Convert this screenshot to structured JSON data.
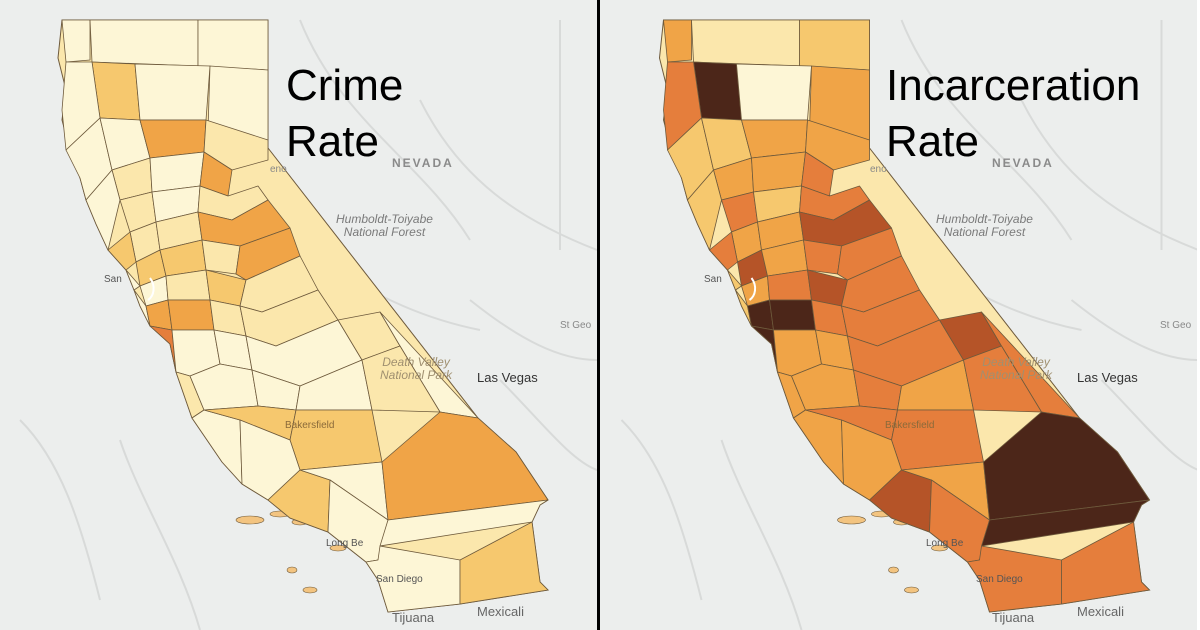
{
  "panels": [
    {
      "title_line1": "Crime",
      "title_line2": "Rate",
      "palette": [
        "#fdf6d6",
        "#fbe7ac",
        "#f6c86e",
        "#f0a447",
        "#e57e3c",
        "#b55428",
        "#4c2619"
      ],
      "counties": [
        0,
        0,
        0,
        2,
        0,
        0,
        0,
        0,
        0,
        3,
        1,
        1,
        0,
        3,
        0,
        1,
        0,
        1,
        1,
        1,
        3,
        2,
        2,
        2,
        1,
        3,
        0,
        0,
        1,
        2,
        1,
        0,
        3,
        3,
        1,
        1,
        4,
        0,
        0,
        0,
        1,
        0,
        1,
        0,
        0,
        0,
        1,
        0,
        2,
        2,
        0,
        2,
        0,
        3,
        0,
        0,
        0,
        2
      ]
    },
    {
      "title_line1": "Incarceration",
      "title_line2": "Rate",
      "palette": [
        "#fdf6d6",
        "#fbe7ac",
        "#f6c86e",
        "#f0a447",
        "#e57e3c",
        "#b55428",
        "#4c2619"
      ],
      "counties": [
        3,
        1,
        2,
        6,
        4,
        0,
        3,
        2,
        2,
        3,
        3,
        3,
        3,
        4,
        2,
        4,
        2,
        4,
        3,
        3,
        5,
        4,
        5,
        3,
        4,
        4,
        2,
        3,
        4,
        5,
        4,
        2,
        6,
        6,
        4,
        4,
        6,
        3,
        3,
        4,
        5,
        4,
        3,
        3,
        4,
        3,
        4,
        3,
        4,
        4,
        3,
        5,
        3,
        6,
        4,
        6,
        4,
        4
      ]
    }
  ],
  "map_labels": {
    "nevada": "NEVADA",
    "forest_line1": "Humboldt-Toiyabe",
    "forest_line2": "National Forest",
    "las_vegas": "Las Vegas",
    "reno": "eno",
    "st_george": "St Geo",
    "death_valley_line1": "Death Valley",
    "death_valley_line2": "National Park",
    "bakersfield": "Bakersfield",
    "long_beach": "Long Be",
    "san_diego": "San Diego",
    "tijuana": "Tijuana",
    "mexicali": "Mexicali",
    "san_francisco": "San"
  },
  "colors": {
    "background": "#eceeed",
    "divider": "#000000",
    "county_border": "#6e5a3c"
  }
}
